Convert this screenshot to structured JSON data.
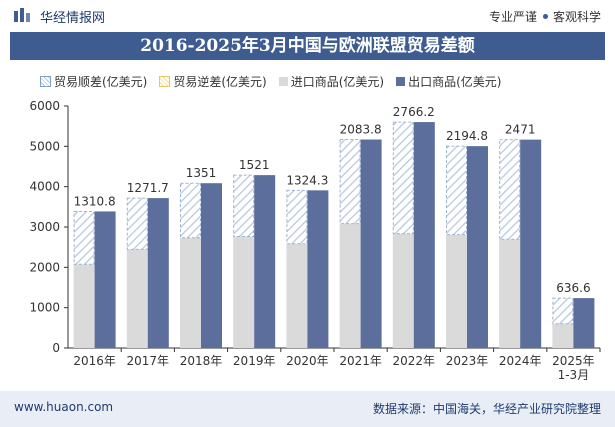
{
  "header": {
    "brand": "华经情报网",
    "tag1": "专业严谨",
    "tag2": "客观科学"
  },
  "footer": {
    "website": "www.huaon.com",
    "source": "数据来源：中国海关，华经产业研究院整理"
  },
  "colors": {
    "title_bg": "#3f5c91",
    "import": "#dadada",
    "export": "#5b6e9c",
    "surplus_hatch": "#b7c7dd",
    "deficit_hatch": "#f1dc99"
  },
  "chart_data": {
    "type": "bar",
    "title": "2016-2025年3月中国与欧洲联盟贸易差额",
    "categories": [
      "2016年",
      "2017年",
      "2018年",
      "2019年",
      "2020年",
      "2021年",
      "2022年",
      "2023年",
      "2024年",
      "2025年1-3月"
    ],
    "category_lines": [
      [
        "2016年"
      ],
      [
        "2017年"
      ],
      [
        "2018年"
      ],
      [
        "2019年"
      ],
      [
        "2020年"
      ],
      [
        "2021年"
      ],
      [
        "2022年"
      ],
      [
        "2023年"
      ],
      [
        "2024年"
      ],
      [
        "2025年",
        "1-3月"
      ]
    ],
    "series": [
      {
        "name": "贸易顺差(亿美元)",
        "values": [
          1310.8,
          1271.7,
          1351,
          1521,
          1324.3,
          2083.8,
          2766.2,
          2194.8,
          2471,
          636.6
        ]
      },
      {
        "name": "贸易逆差(亿美元)",
        "values": [
          null,
          null,
          null,
          null,
          null,
          null,
          null,
          null,
          null,
          null
        ]
      },
      {
        "name": "进口商品(亿美元)",
        "values": [
          2075,
          2445,
          2735,
          2765,
          2585,
          3085,
          2835,
          2810,
          2695,
          600
        ]
      },
      {
        "name": "出口商品(亿美元)",
        "values": [
          3385.8,
          3716.7,
          4086,
          4286,
          3909.3,
          5168.8,
          5601.2,
          5004.8,
          5166,
          1236.6
        ]
      }
    ],
    "ylim": [
      0,
      6000
    ],
    "yticks": [
      0,
      1000,
      2000,
      3000,
      4000,
      5000,
      6000
    ],
    "grid": false,
    "legend_position": "top"
  }
}
